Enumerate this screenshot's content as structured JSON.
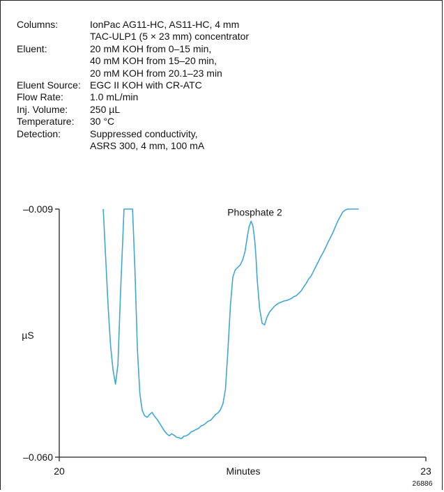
{
  "conditions": [
    {
      "label": "Columns:",
      "values": [
        "IonPac AG11-HC, AS11-HC, 4 mm",
        "TAC-ULP1 (5 × 23 mm) concentrator"
      ]
    },
    {
      "label": "Eluent:",
      "values": [
        "20 mM KOH from 0–15 min,",
        "40 mM KOH from 15–20 min,",
        "20 mM KOH from 20.1–23 min"
      ]
    },
    {
      "label": "Eluent Source:",
      "values": [
        "EGC II KOH  with CR-ATC"
      ]
    },
    {
      "label": "Flow Rate:",
      "values": [
        "1.0 mL/min"
      ]
    },
    {
      "label": "Inj. Volume:",
      "values": [
        "250 µL"
      ]
    },
    {
      "label": "Temperature:",
      "values": [
        "30 °C"
      ]
    },
    {
      "label": "Detection:",
      "values": [
        "Suppressed conductivity,",
        "ASRS 300, 4 mm, 100 mA"
      ]
    }
  ],
  "figure_id": "26886",
  "chart_data": {
    "type": "line",
    "xlabel": "Minutes",
    "ylabel": "µS",
    "xlim": [
      20,
      23
    ],
    "ylim": [
      -0.06,
      -0.009
    ],
    "x_ticks": [
      {
        "value": 20,
        "label": "20"
      },
      {
        "value": 23,
        "label": "23"
      }
    ],
    "y_ticks": [
      {
        "value": -0.009,
        "label": "–0.009"
      },
      {
        "value": -0.06,
        "label": "–0.060"
      }
    ],
    "line_color": "#3fa7d6",
    "annotations": [
      {
        "text": "Phosphate 2",
        "x": 21.6,
        "y": -0.0115
      }
    ],
    "series": [
      {
        "x": [
          20.36,
          20.38,
          20.4,
          20.42,
          20.44,
          20.46,
          20.48,
          20.5,
          20.52,
          20.53,
          20.55,
          20.56,
          20.57,
          20.58,
          20.6,
          20.62,
          20.64,
          20.66,
          20.68,
          20.7,
          20.72,
          20.74,
          20.76,
          20.78,
          20.8,
          20.82,
          20.84,
          20.86,
          20.88,
          20.9,
          20.92,
          20.94,
          20.96,
          20.98,
          21.0,
          21.02,
          21.04,
          21.06,
          21.08,
          21.1,
          21.12,
          21.14,
          21.16,
          21.18,
          21.2,
          21.22,
          21.24,
          21.26,
          21.28,
          21.3,
          21.32,
          21.34,
          21.36,
          21.38,
          21.4,
          21.42,
          21.44,
          21.46,
          21.48,
          21.5,
          21.52,
          21.54,
          21.555,
          21.57,
          21.585,
          21.6,
          21.61,
          21.62,
          21.64,
          21.66,
          21.68,
          21.7,
          21.72,
          21.74,
          21.76,
          21.78,
          21.8,
          21.82,
          21.84,
          21.86,
          21.88,
          21.9,
          21.92,
          21.94,
          21.96,
          21.98,
          22.0,
          22.02,
          22.04,
          22.06,
          22.08,
          22.1,
          22.12,
          22.14,
          22.16,
          22.18,
          22.2,
          22.22,
          22.24,
          22.26,
          22.28,
          22.3,
          22.32,
          22.34,
          22.36,
          22.38,
          22.4,
          22.42,
          22.44,
          22.45
        ],
        "y": [
          -0.009,
          -0.019,
          -0.029,
          -0.037,
          -0.042,
          -0.045,
          -0.041,
          -0.027,
          -0.015,
          -0.009,
          -0.009,
          -0.009,
          -0.009,
          -0.009,
          -0.009,
          -0.022,
          -0.038,
          -0.047,
          -0.0505,
          -0.0515,
          -0.0518,
          -0.0512,
          -0.0508,
          -0.0516,
          -0.0522,
          -0.053,
          -0.0538,
          -0.0546,
          -0.0552,
          -0.0556,
          -0.0552,
          -0.0555,
          -0.0559,
          -0.056,
          -0.0562,
          -0.0557,
          -0.0556,
          -0.0553,
          -0.0548,
          -0.0546,
          -0.0543,
          -0.0541,
          -0.0536,
          -0.0534,
          -0.053,
          -0.0526,
          -0.0524,
          -0.0518,
          -0.0512,
          -0.0509,
          -0.0502,
          -0.049,
          -0.046,
          -0.038,
          -0.029,
          -0.023,
          -0.0215,
          -0.021,
          -0.0205,
          -0.0195,
          -0.0178,
          -0.0145,
          -0.0125,
          -0.0115,
          -0.0125,
          -0.0155,
          -0.019,
          -0.0235,
          -0.0295,
          -0.0325,
          -0.0328,
          -0.0312,
          -0.0302,
          -0.0296,
          -0.029,
          -0.0286,
          -0.0283,
          -0.0281,
          -0.0279,
          -0.0278,
          -0.0276,
          -0.0274,
          -0.027,
          -0.0268,
          -0.0263,
          -0.0258,
          -0.025,
          -0.0243,
          -0.0234,
          -0.0228,
          -0.0218,
          -0.0208,
          -0.0198,
          -0.0188,
          -0.0179,
          -0.0169,
          -0.0158,
          -0.0148,
          -0.0138,
          -0.0126,
          -0.0114,
          -0.0105,
          -0.0096,
          -0.0092,
          -0.009,
          -0.009,
          -0.009,
          -0.009,
          -0.009,
          -0.009
        ]
      }
    ]
  }
}
